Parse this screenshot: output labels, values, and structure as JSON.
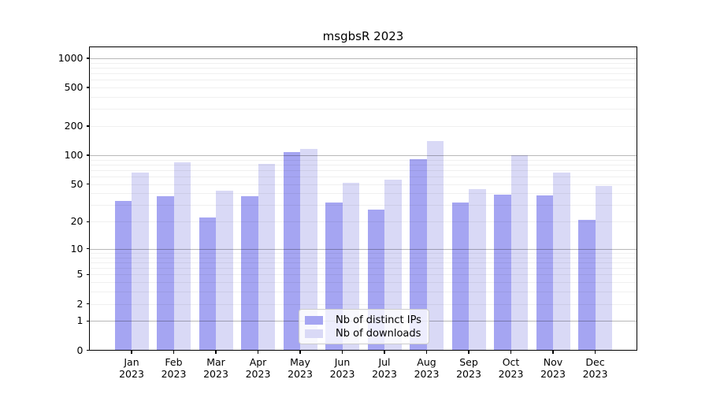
{
  "title": "msgbsR 2023",
  "chart_data": {
    "type": "bar",
    "title": "msgbsR 2023",
    "categories": [
      "Jan",
      "Feb",
      "Mar",
      "Apr",
      "May",
      "Jun",
      "Jul",
      "Aug",
      "Sep",
      "Oct",
      "Nov",
      "Dec"
    ],
    "year_label": "2023",
    "series": [
      {
        "name": "Nb of distinct IPs",
        "color": "#a5a5f2",
        "values": [
          33,
          37,
          22,
          37,
          108,
          32,
          27,
          91,
          32,
          39,
          38,
          21
        ]
      },
      {
        "name": "Nb of downloads",
        "color": "#d9d9f6",
        "values": [
          66,
          85,
          43,
          82,
          116,
          52,
          56,
          140,
          44,
          100,
          66,
          48
        ]
      }
    ],
    "yscale": "log1p",
    "yticks": [
      0,
      1,
      2,
      5,
      10,
      20,
      50,
      100,
      200,
      500,
      1000
    ],
    "ytick_labels": [
      "0",
      "1",
      "2",
      "5",
      "10",
      "20",
      "50",
      "100",
      "200",
      "500",
      "1000"
    ],
    "major_gridlines": [
      1,
      10,
      100,
      1000
    ],
    "ylim": [
      0,
      1310
    ],
    "grid": true,
    "legend_position": "bottom-center",
    "xlabel": "",
    "ylabel": ""
  }
}
